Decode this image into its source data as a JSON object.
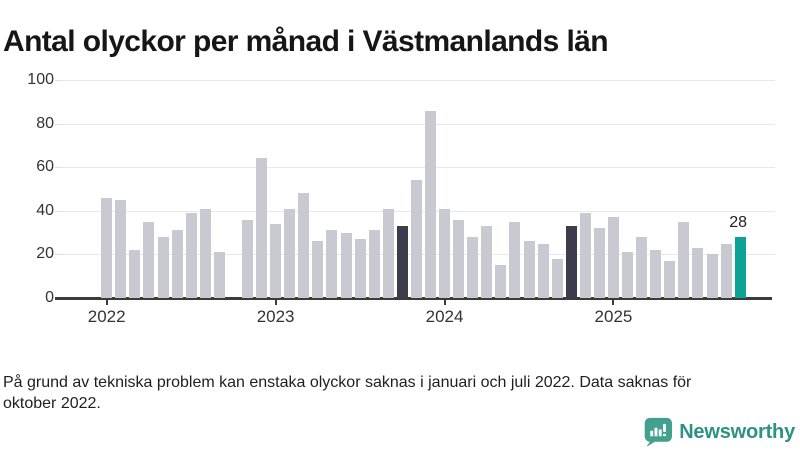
{
  "title": "Antal olyckor per månad i Västmanlands län",
  "footnote": {
    "text": "På grund av tekniska problem kan enstaka olyckor saknas i januari och juli 2022. Data saknas för oktober 2022.",
    "lines": [
      "På grund av tekniska problem kan enstaka olyckor saknas i januari och juli 2022. Data saknas för",
      "oktober 2022."
    ]
  },
  "brand": {
    "name": "Newsworthy",
    "icon": "bar-chart-speech-bubble-icon",
    "icon_color": "#41a08e",
    "text_color": "#2f9183"
  },
  "chart_data": {
    "type": "bar",
    "title": "Antal olyckor per månad i Västmanlands län",
    "xlabel": "",
    "ylabel": "",
    "ylim": [
      0,
      100
    ],
    "yticks": [
      0,
      20,
      40,
      60,
      80,
      100
    ],
    "grid": "horizontal",
    "legend": "none",
    "x_start": "2022-01",
    "x_end": "2025-10",
    "year_labels": [
      "2022",
      "2023",
      "2024",
      "2025"
    ],
    "missing_months": [
      "2022-10"
    ],
    "colors": {
      "bar": "#c9c9d1",
      "dark": "#3c3c4c",
      "accent": "#0ca295",
      "grid": "#e8e8ea",
      "axis": "#3b3b3b"
    },
    "highlights": {
      "2023-10": "dark",
      "2024-10": "dark",
      "2025-10": "accent"
    },
    "annotation": {
      "month": "2025-10",
      "label": "28"
    },
    "points": [
      [
        "2022-01",
        46
      ],
      [
        "2022-02",
        45
      ],
      [
        "2022-03",
        22
      ],
      [
        "2022-04",
        35
      ],
      [
        "2022-05",
        28
      ],
      [
        "2022-06",
        31
      ],
      [
        "2022-07",
        39
      ],
      [
        "2022-08",
        41
      ],
      [
        "2022-09",
        21
      ],
      [
        "2022-10",
        null
      ],
      [
        "2022-11",
        36
      ],
      [
        "2022-12",
        64
      ],
      [
        "2023-01",
        34
      ],
      [
        "2023-02",
        41
      ],
      [
        "2023-03",
        48
      ],
      [
        "2023-04",
        26
      ],
      [
        "2023-05",
        31
      ],
      [
        "2023-06",
        30
      ],
      [
        "2023-07",
        27
      ],
      [
        "2023-08",
        31
      ],
      [
        "2023-09",
        41
      ],
      [
        "2023-10",
        33
      ],
      [
        "2023-11",
        54
      ],
      [
        "2023-12",
        86
      ],
      [
        "2024-01",
        41
      ],
      [
        "2024-02",
        36
      ],
      [
        "2024-03",
        28
      ],
      [
        "2024-04",
        33
      ],
      [
        "2024-05",
        15
      ],
      [
        "2024-06",
        35
      ],
      [
        "2024-07",
        26
      ],
      [
        "2024-08",
        25
      ],
      [
        "2024-09",
        18
      ],
      [
        "2024-10",
        33
      ],
      [
        "2024-11",
        39
      ],
      [
        "2024-12",
        32
      ],
      [
        "2025-01",
        37
      ],
      [
        "2025-02",
        21
      ],
      [
        "2025-03",
        28
      ],
      [
        "2025-04",
        22
      ],
      [
        "2025-05",
        17
      ],
      [
        "2025-06",
        35
      ],
      [
        "2025-07",
        23
      ],
      [
        "2025-08",
        20
      ],
      [
        "2025-09",
        25
      ],
      [
        "2025-10",
        28
      ]
    ]
  }
}
